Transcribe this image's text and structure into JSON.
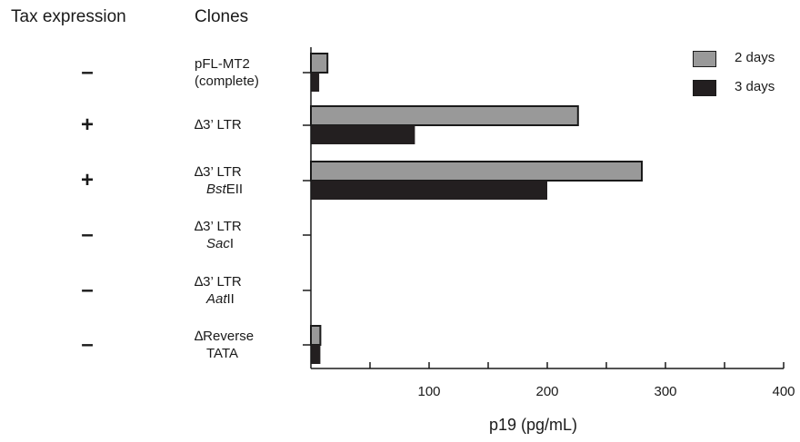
{
  "header": {
    "left_title": "Tax expression",
    "right_title": "Clones"
  },
  "chart_data": {
    "type": "bar",
    "orientation": "horizontal",
    "xlabel": "p19 (pg/mL)",
    "xlim": [
      0,
      400
    ],
    "xticks": [
      100,
      200,
      300,
      400
    ],
    "x_minor_step": 50,
    "legend_position": "top-right",
    "categories": [
      {
        "line1": "pFL-MT2",
        "line2": "(complete)",
        "line2_parts": [],
        "tax": "–"
      },
      {
        "line1": "∆3’ LTR",
        "line2": "",
        "line2_parts": [],
        "tax": "+"
      },
      {
        "line1": "∆3’ LTR",
        "line2": "",
        "line2_parts": [
          {
            "text": "Bst",
            "italic": true
          },
          {
            "text": "EII",
            "italic": false
          }
        ],
        "tax": "+"
      },
      {
        "line1": "∆3’ LTR",
        "line2": "",
        "line2_parts": [
          {
            "text": "Sac",
            "italic": true
          },
          {
            "text": "I",
            "italic": false
          }
        ],
        "tax": "–"
      },
      {
        "line1": "∆3’ LTR",
        "line2": "",
        "line2_parts": [
          {
            "text": "Aat",
            "italic": true
          },
          {
            "text": "II",
            "italic": false
          }
        ],
        "tax": "–"
      },
      {
        "line1": "∆Reverse",
        "line2": "TATA",
        "line2_parts": [],
        "tax": "–"
      }
    ],
    "series": [
      {
        "name": "2 days",
        "color": "#999999",
        "values": [
          14,
          226,
          280,
          0,
          0,
          8
        ]
      },
      {
        "name": "3 days",
        "color": "#231f20",
        "values": [
          7,
          88,
          200,
          0,
          0,
          8
        ]
      }
    ]
  }
}
